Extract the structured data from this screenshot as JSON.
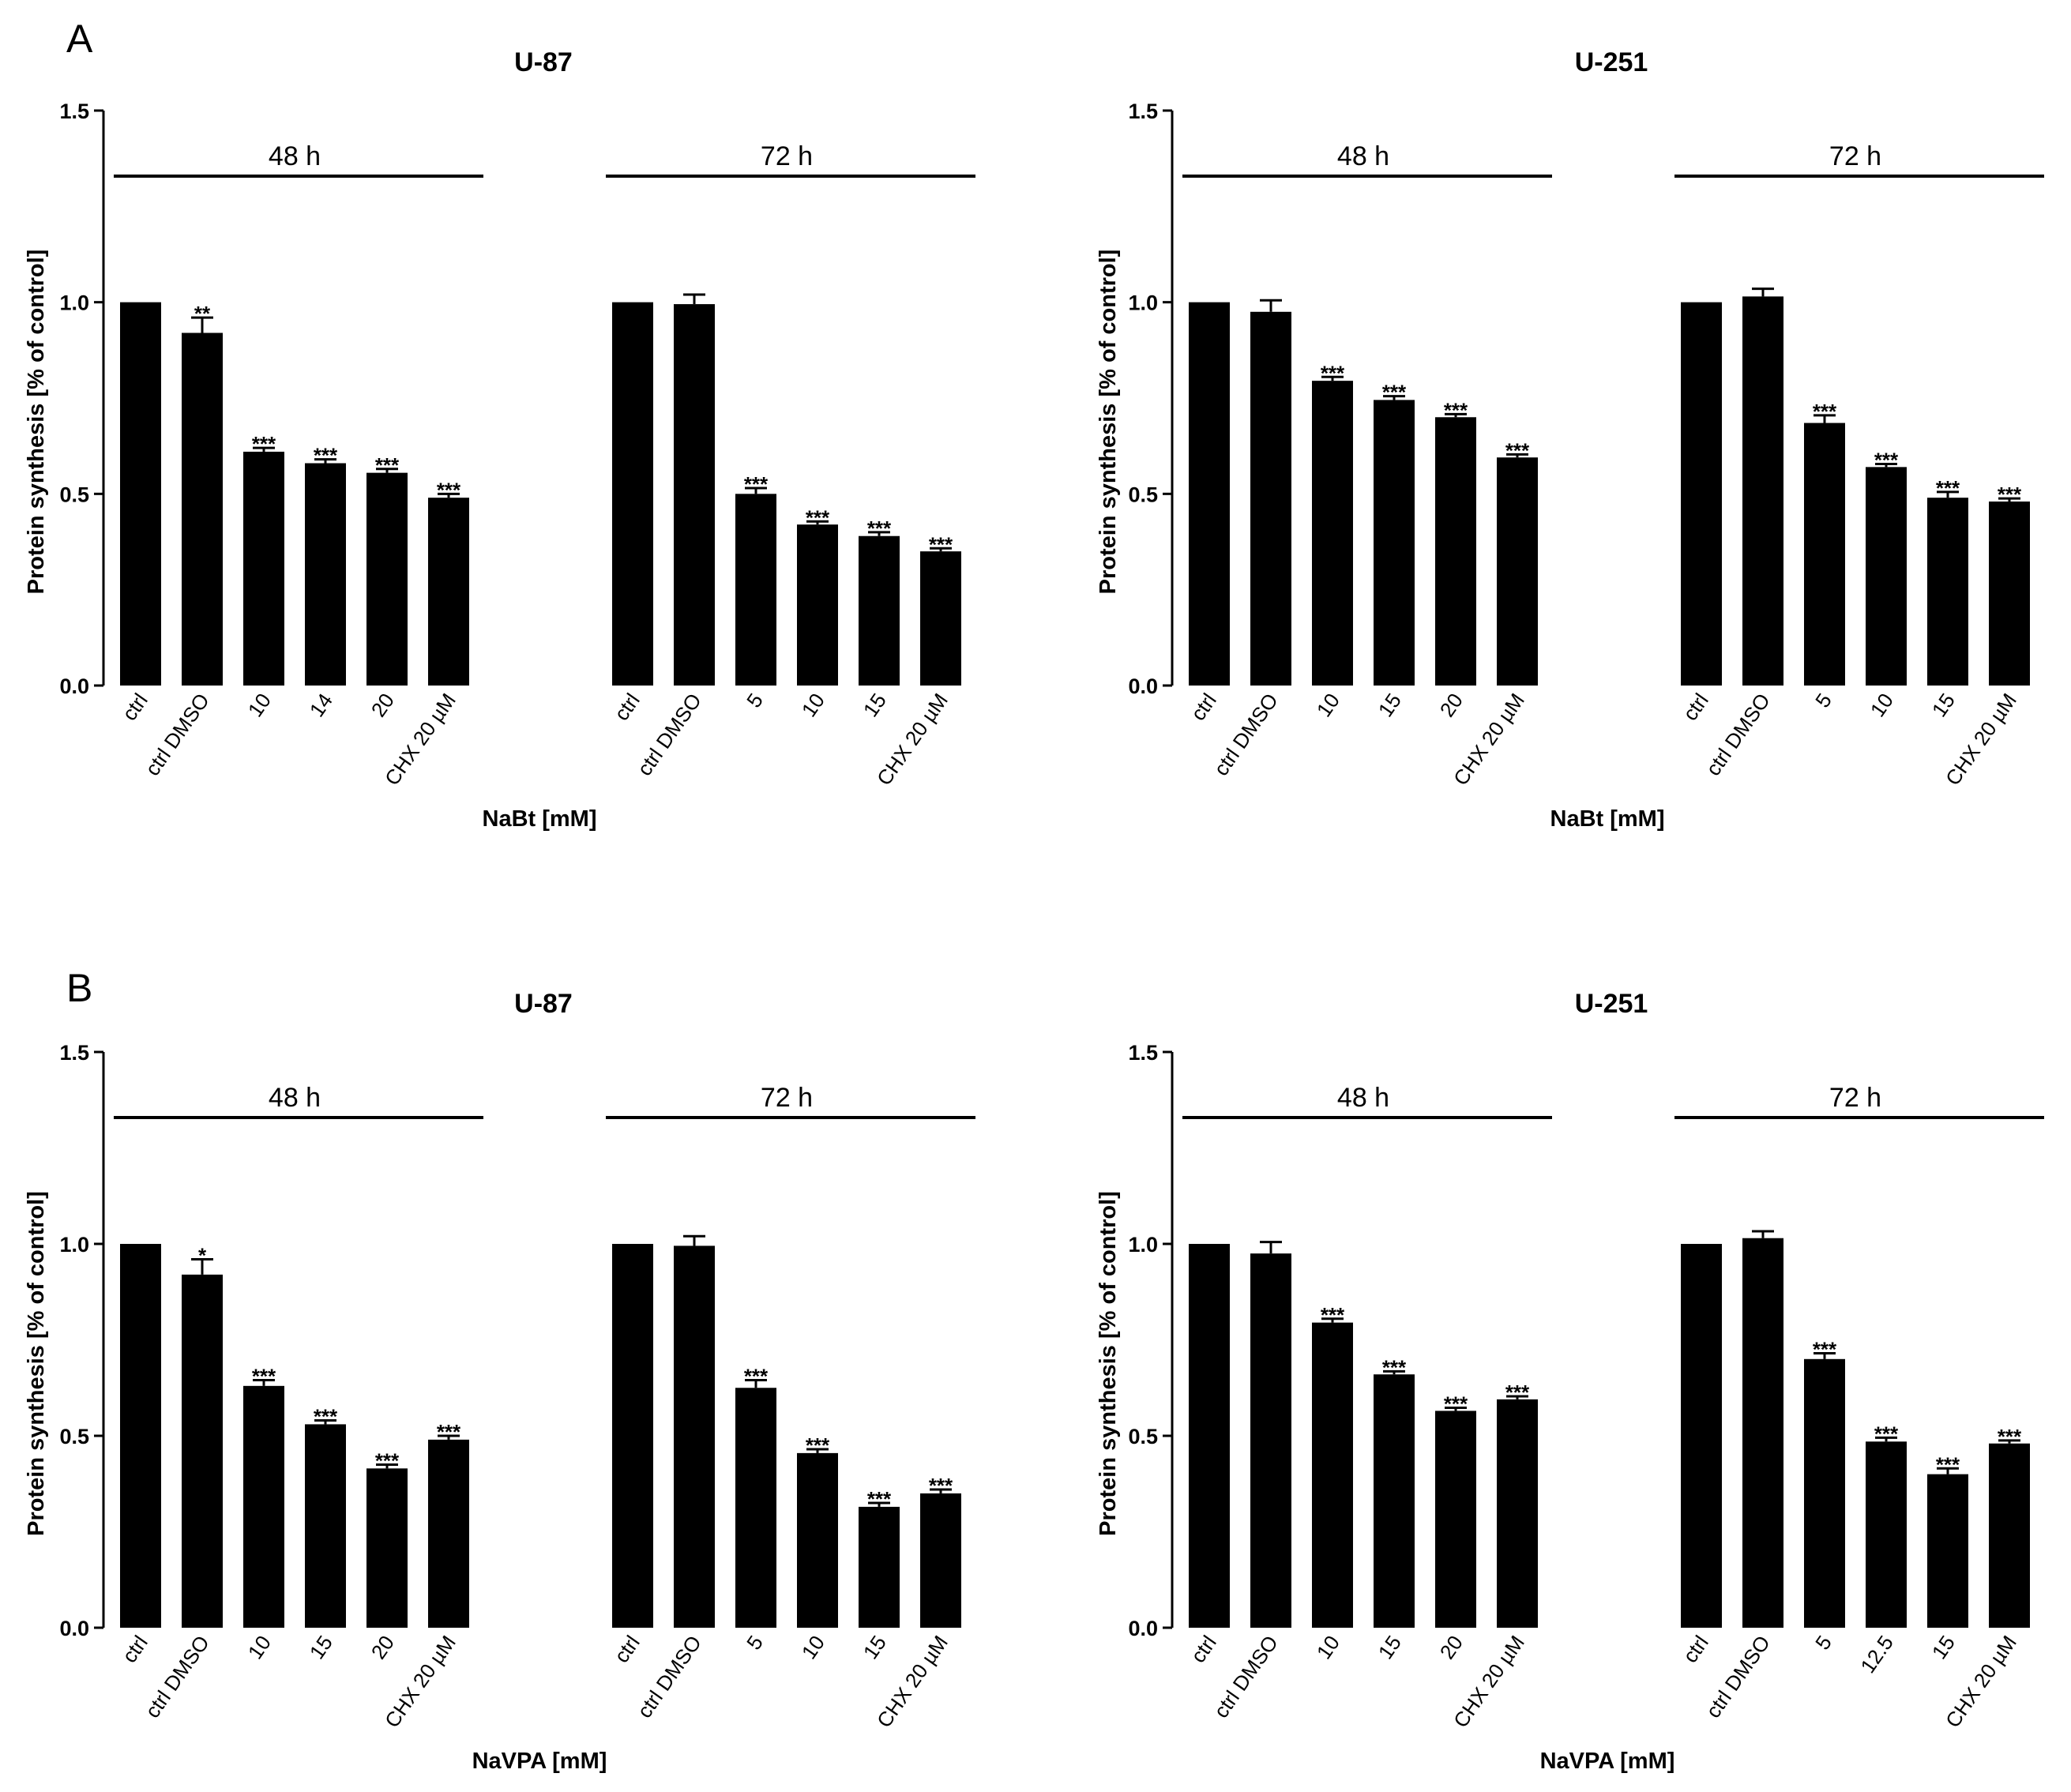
{
  "panels": [
    {
      "letter": "A"
    },
    {
      "letter": "B"
    }
  ],
  "colors": {
    "bar": "#000000",
    "axis": "#000000",
    "text": "#000000"
  },
  "chart_data": [
    {
      "type": "bar",
      "panel": "A",
      "title": "U-87",
      "ylabel": "Protein synthesis  [% of control]",
      "xlabel": "NaBt [mM]",
      "ylim": [
        0,
        1.5
      ],
      "yticks": [
        "0.0",
        "0.5",
        "1.0",
        "1.5"
      ],
      "groups": [
        {
          "label": "48 h",
          "categories": [
            "ctrl",
            "ctrl DMSO",
            "10",
            "14",
            "20",
            "CHX 20 µM"
          ],
          "values": [
            1.0,
            0.92,
            0.61,
            0.58,
            0.555,
            0.49
          ],
          "errors": [
            0,
            0.04,
            0.01,
            0.01,
            0.01,
            0.01
          ],
          "significance": [
            "",
            "**",
            "***",
            "***",
            "***",
            "***"
          ]
        },
        {
          "label": "72 h",
          "categories": [
            "ctrl",
            "ctrl DMSO",
            "5",
            "10",
            "15",
            "CHX 20 µM"
          ],
          "values": [
            1.0,
            0.995,
            0.5,
            0.42,
            0.39,
            0.35
          ],
          "errors": [
            0,
            0.025,
            0.015,
            0.008,
            0.01,
            0.008
          ],
          "significance": [
            "",
            "",
            "***",
            "***",
            "***",
            "***"
          ]
        }
      ]
    },
    {
      "type": "bar",
      "panel": "A",
      "title": "U-251",
      "ylabel": "Protein synthesis  [% of control]",
      "xlabel": "NaBt [mM]",
      "ylim": [
        0,
        1.5
      ],
      "yticks": [
        "0.0",
        "0.5",
        "1.0",
        "1.5"
      ],
      "groups": [
        {
          "label": "48 h",
          "categories": [
            "ctrl",
            "ctrl DMSO",
            "10",
            "15",
            "20",
            "CHX 20 µM"
          ],
          "values": [
            1.0,
            0.975,
            0.795,
            0.745,
            0.7,
            0.595
          ],
          "errors": [
            0,
            0.03,
            0.01,
            0.01,
            0.008,
            0.008
          ],
          "significance": [
            "",
            "",
            "***",
            "***",
            "***",
            "***"
          ]
        },
        {
          "label": "72 h",
          "categories": [
            "ctrl",
            "ctrl DMSO",
            "5",
            "10",
            "15",
            "CHX 20 µM"
          ],
          "values": [
            1.0,
            1.015,
            0.685,
            0.57,
            0.49,
            0.48
          ],
          "errors": [
            0,
            0.02,
            0.02,
            0.008,
            0.015,
            0.008
          ],
          "significance": [
            "",
            "",
            "***",
            "***",
            "***",
            "***"
          ]
        }
      ]
    },
    {
      "type": "bar",
      "panel": "B",
      "title": "U-87",
      "ylabel": "Protein synthesis  [% of control]",
      "xlabel": "NaVPA [mM]",
      "ylim": [
        0,
        1.5
      ],
      "yticks": [
        "0.0",
        "0.5",
        "1.0",
        "1.5"
      ],
      "groups": [
        {
          "label": "48 h",
          "categories": [
            "ctrl",
            "ctrl DMSO",
            "10",
            "15",
            "20",
            "CHX 20 µM"
          ],
          "values": [
            1.0,
            0.92,
            0.63,
            0.53,
            0.415,
            0.49
          ],
          "errors": [
            0,
            0.04,
            0.015,
            0.01,
            0.01,
            0.01
          ],
          "significance": [
            "",
            "*",
            "***",
            "***",
            "***",
            "***"
          ]
        },
        {
          "label": "72 h",
          "categories": [
            "ctrl",
            "ctrl DMSO",
            "5",
            "10",
            "15",
            "CHX 20 µM"
          ],
          "values": [
            1.0,
            0.995,
            0.625,
            0.455,
            0.315,
            0.35
          ],
          "errors": [
            0,
            0.025,
            0.02,
            0.01,
            0.01,
            0.01
          ],
          "significance": [
            "",
            "",
            "***",
            "***",
            "***",
            "***"
          ]
        }
      ]
    },
    {
      "type": "bar",
      "panel": "B",
      "title": "U-251",
      "ylabel": "Protein synthesis  [% of control]",
      "xlabel": "NaVPA [mM]",
      "ylim": [
        0,
        1.5
      ],
      "yticks": [
        "0.0",
        "0.5",
        "1.0",
        "1.5"
      ],
      "groups": [
        {
          "label": "48 h",
          "categories": [
            "ctrl",
            "ctrl DMSO",
            "10",
            "15",
            "20",
            "CHX 20 µM"
          ],
          "values": [
            1.0,
            0.975,
            0.795,
            0.66,
            0.565,
            0.595
          ],
          "errors": [
            0,
            0.03,
            0.01,
            0.008,
            0.008,
            0.008
          ],
          "significance": [
            "",
            "",
            "***",
            "***",
            "***",
            "***"
          ]
        },
        {
          "label": "72 h",
          "categories": [
            "ctrl",
            "ctrl DMSO",
            "5",
            "12.5",
            "15",
            "CHX 20 µM"
          ],
          "values": [
            1.0,
            1.015,
            0.7,
            0.485,
            0.4,
            0.48
          ],
          "errors": [
            0,
            0.018,
            0.015,
            0.01,
            0.015,
            0.008
          ],
          "significance": [
            "",
            "",
            "***",
            "***",
            "***",
            "***"
          ]
        }
      ]
    }
  ]
}
